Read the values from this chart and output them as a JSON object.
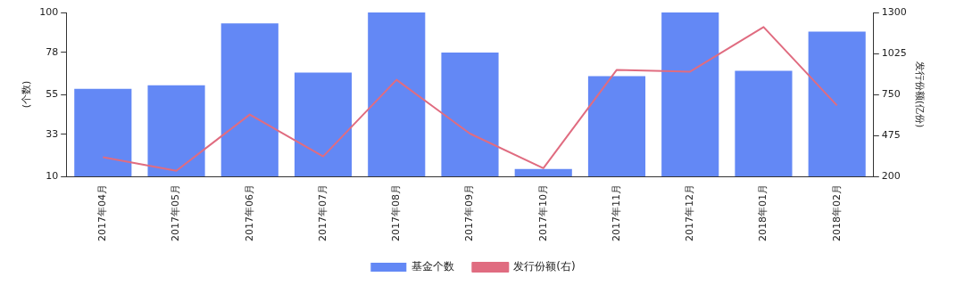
{
  "chart_data": {
    "type": "bar",
    "categories": [
      "2017年04月",
      "2017年05月",
      "2017年06月",
      "2017年07月",
      "2017年08月",
      "2017年09月",
      "2017年10月",
      "2017年11月",
      "2017年12月",
      "2018年01月",
      "2018年02月"
    ],
    "series": [
      {
        "name": "基金个数",
        "color": "#6388f5",
        "values": [
          58,
          60,
          94,
          67,
          100,
          78,
          14,
          65,
          100,
          68,
          89.5
        ]
      },
      {
        "name": "发行份额(右)",
        "type": "line",
        "axis": "y2",
        "color": "#e06c80",
        "values": [
          328,
          237,
          615,
          334,
          848,
          487,
          255,
          915,
          903,
          1202,
          676
        ]
      }
    ],
    "ylabel": "(个数)",
    "y2label": "发行份额(亿份)",
    "ylim": [
      10,
      100
    ],
    "yticks": [
      10,
      33,
      55,
      78,
      100
    ],
    "y2lim": [
      200,
      1300
    ],
    "y2ticks": [
      200,
      475,
      750,
      1025,
      1300
    ],
    "grid": false,
    "legend": "bottom",
    "marker": "none"
  }
}
